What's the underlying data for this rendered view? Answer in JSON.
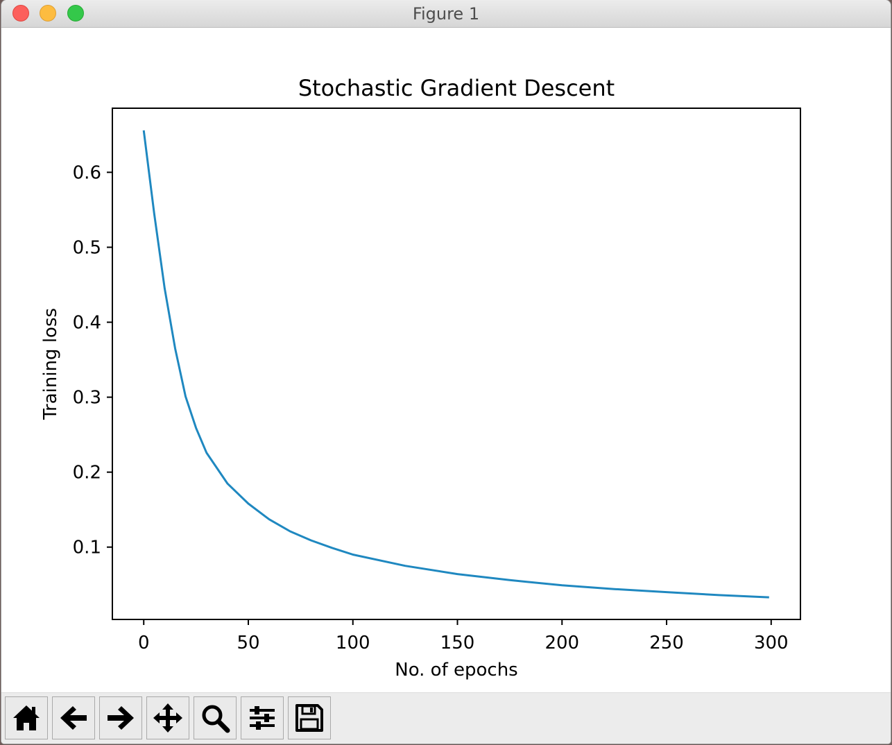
{
  "window": {
    "title": "Figure 1"
  },
  "toolbar": {
    "buttons": [
      {
        "icon": "home-icon"
      },
      {
        "icon": "back-arrow-icon"
      },
      {
        "icon": "forward-arrow-icon"
      },
      {
        "icon": "pan-move-icon"
      },
      {
        "icon": "zoom-magnifier-icon"
      },
      {
        "icon": "configure-subplots-icon"
      },
      {
        "icon": "save-floppy-icon"
      }
    ]
  },
  "chart_data": {
    "type": "line",
    "title": "Stochastic Gradient Descent",
    "xlabel": "No. of epochs",
    "ylabel": "Training loss",
    "xlim": [
      -15,
      314
    ],
    "ylim": [
      0.0035,
      0.6855
    ],
    "xticks": [
      0,
      50,
      100,
      150,
      200,
      250,
      300
    ],
    "yticks": [
      0.1,
      0.2,
      0.3,
      0.4,
      0.5,
      0.6
    ],
    "xtick_labels": [
      "0",
      "50",
      "100",
      "150",
      "200",
      "250",
      "300"
    ],
    "ytick_labels": [
      "0.1",
      "0.2",
      "0.3",
      "0.4",
      "0.5",
      "0.6"
    ],
    "grid": false,
    "line_color": "#1f88c0",
    "series": [
      {
        "x": [
          0,
          5,
          10,
          15,
          20,
          25,
          30,
          40,
          50,
          60,
          70,
          80,
          90,
          100,
          125,
          150,
          175,
          200,
          225,
          250,
          275,
          299
        ],
        "y": [
          0.656,
          0.545,
          0.445,
          0.365,
          0.301,
          0.259,
          0.226,
          0.185,
          0.158,
          0.137,
          0.121,
          0.109,
          0.099,
          0.09,
          0.075,
          0.064,
          0.056,
          0.049,
          0.044,
          0.04,
          0.036,
          0.033
        ]
      }
    ]
  }
}
